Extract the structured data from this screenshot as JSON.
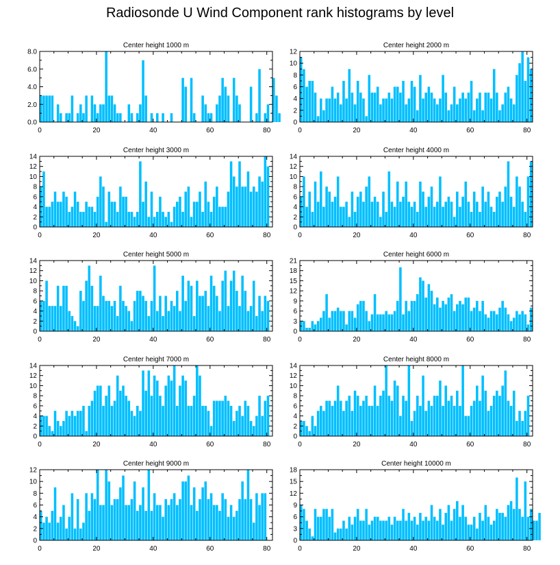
{
  "title": "Radiosonde U Wind Component rank histograms by level",
  "colors": {
    "bar": "#00bfff",
    "bar_edge": "#ffffff",
    "axis": "#000000",
    "background": "#ffffff"
  },
  "chart_data": [
    {
      "type": "bar",
      "title": "Center height 1000 m",
      "x_start": 0,
      "xlim": [
        0,
        82
      ],
      "xticks": [
        0,
        20,
        40,
        60,
        80
      ],
      "ylim": [
        0,
        8
      ],
      "yticks": [
        0,
        2,
        4,
        6,
        8
      ],
      "ytick_labels": [
        "0.0",
        "2.0",
        "4.0",
        "6.0",
        "8.0"
      ],
      "values": [
        3,
        3,
        3,
        3,
        3,
        0,
        2,
        1,
        0,
        1,
        1,
        3,
        0,
        1,
        2,
        1,
        3,
        0,
        3,
        2,
        1,
        2,
        2,
        8,
        3,
        3,
        2,
        1,
        1,
        0,
        0,
        2,
        1,
        0,
        1,
        2,
        7,
        3,
        0,
        1,
        0,
        1,
        0,
        1,
        0,
        0,
        1,
        0,
        0,
        0,
        5,
        4,
        0,
        5,
        1,
        0,
        0,
        3,
        2,
        1,
        1,
        0,
        2,
        3,
        5,
        4,
        3,
        0,
        5,
        3,
        2,
        0,
        0,
        0,
        4,
        0,
        1,
        6,
        0,
        1,
        2,
        0,
        5,
        3,
        1
      ]
    },
    {
      "type": "bar",
      "title": "Center height 2000 m",
      "x_start": 0,
      "xlim": [
        0,
        82
      ],
      "xticks": [
        0,
        20,
        40,
        60,
        80
      ],
      "ylim": [
        0,
        12
      ],
      "yticks": [
        0,
        2,
        4,
        6,
        8,
        10,
        12
      ],
      "values": [
        11,
        9,
        6,
        7,
        7,
        5,
        1,
        4,
        2,
        4,
        4,
        6,
        4,
        5,
        3,
        7,
        4,
        9,
        5,
        3,
        7,
        5,
        4,
        1,
        8,
        5,
        5,
        6,
        3,
        4,
        4,
        5,
        4,
        6,
        6,
        5,
        7,
        3,
        4,
        7,
        6,
        2,
        8,
        4,
        5,
        6,
        5,
        4,
        3,
        4,
        8,
        5,
        2,
        3,
        6,
        3,
        4,
        5,
        4,
        5,
        7,
        2,
        4,
        5,
        2,
        5,
        5,
        4,
        9,
        5,
        2,
        3,
        5,
        6,
        4,
        3,
        8,
        10,
        12,
        7,
        11,
        9
      ]
    },
    {
      "type": "bar",
      "title": "Center height 3000 m",
      "x_start": 0,
      "xlim": [
        0,
        82
      ],
      "xticks": [
        0,
        20,
        40,
        60,
        80
      ],
      "ylim": [
        0,
        14
      ],
      "yticks": [
        0,
        2,
        4,
        6,
        8,
        10,
        12,
        14
      ],
      "values": [
        8,
        11,
        4,
        4,
        5,
        7,
        5,
        5,
        7,
        6,
        3,
        4,
        7,
        5,
        3,
        3,
        5,
        4,
        4,
        3,
        6,
        10,
        8,
        1,
        7,
        5,
        5,
        3,
        8,
        6,
        6,
        3,
        3,
        2,
        3,
        13,
        5,
        9,
        2,
        7,
        2,
        3,
        6,
        3,
        2,
        3,
        1,
        4,
        5,
        6,
        3,
        7,
        8,
        2,
        5,
        5,
        7,
        3,
        9,
        5,
        3,
        6,
        8,
        4,
        4,
        4,
        7,
        13,
        10,
        8,
        13,
        8,
        8,
        11,
        7,
        8,
        7,
        10,
        9,
        14,
        12
      ]
    },
    {
      "type": "bar",
      "title": "Center height 4000 m",
      "x_start": 0,
      "xlim": [
        0,
        82
      ],
      "xticks": [
        0,
        20,
        40,
        60,
        80
      ],
      "ylim": [
        0,
        14
      ],
      "yticks": [
        0,
        2,
        4,
        6,
        8,
        10,
        12,
        14
      ],
      "values": [
        6,
        10,
        4,
        7,
        3,
        9,
        5,
        11,
        4,
        8,
        7,
        5,
        6,
        10,
        4,
        4,
        5,
        2,
        7,
        3,
        6,
        7,
        5,
        8,
        10,
        5,
        6,
        5,
        2,
        7,
        3,
        11,
        5,
        4,
        9,
        5,
        6,
        9,
        5,
        4,
        5,
        3,
        9,
        7,
        4,
        6,
        8,
        4,
        5,
        10,
        4,
        5,
        6,
        5,
        2,
        7,
        4,
        6,
        9,
        5,
        3,
        7,
        5,
        3,
        8,
        5,
        7,
        4,
        3,
        6,
        7,
        5,
        8,
        13,
        6,
        4,
        10,
        8,
        5,
        3,
        10,
        13
      ]
    },
    {
      "type": "bar",
      "title": "Center height 5000 m",
      "x_start": 0,
      "xlim": [
        0,
        82
      ],
      "xticks": [
        0,
        20,
        40,
        60,
        80
      ],
      "ylim": [
        0,
        14
      ],
      "yticks": [
        0,
        2,
        4,
        6,
        8,
        10,
        12,
        14
      ],
      "values": [
        6,
        6,
        10,
        5,
        5,
        5,
        9,
        5,
        9,
        9,
        4,
        3,
        2,
        1,
        8,
        6,
        10,
        13,
        9,
        5,
        5,
        11,
        7,
        6,
        6,
        5,
        6,
        3,
        9,
        6,
        5,
        4,
        2,
        6,
        8,
        8,
        7,
        6,
        3,
        6,
        13,
        4,
        7,
        3,
        7,
        4,
        6,
        5,
        8,
        4,
        11,
        6,
        10,
        9,
        3,
        10,
        7,
        7,
        8,
        5,
        11,
        9,
        7,
        4,
        10,
        12,
        5,
        10,
        12,
        8,
        5,
        11,
        8,
        4,
        5,
        10,
        3,
        7,
        4,
        7,
        6
      ]
    },
    {
      "type": "bar",
      "title": "Center height 6000 m",
      "x_start": 0,
      "xlim": [
        0,
        82
      ],
      "xticks": [
        0,
        20,
        40,
        60,
        80
      ],
      "ylim": [
        0,
        21
      ],
      "yticks": [
        0,
        3,
        6,
        9,
        12,
        15,
        18,
        21
      ],
      "values": [
        3,
        3,
        1,
        1,
        3,
        2,
        3,
        4,
        6,
        11,
        4,
        6,
        6,
        7,
        6,
        6,
        2,
        6,
        6,
        4,
        8,
        9,
        9,
        6,
        3,
        5,
        11,
        5,
        5,
        5,
        6,
        5,
        5,
        6,
        9,
        19,
        5,
        9,
        6,
        9,
        9,
        11,
        16,
        15,
        10,
        14,
        12,
        8,
        10,
        7,
        9,
        8,
        10,
        11,
        6,
        8,
        9,
        8,
        10,
        10,
        6,
        7,
        9,
        6,
        9,
        5,
        4,
        6,
        6,
        5,
        7,
        9,
        7,
        5,
        3,
        4,
        6,
        5,
        6,
        5,
        2,
        7
      ]
    },
    {
      "type": "bar",
      "title": "Center height 7000 m",
      "x_start": 0,
      "xlim": [
        0,
        82
      ],
      "xticks": [
        0,
        20,
        40,
        60,
        80
      ],
      "ylim": [
        0,
        14
      ],
      "yticks": [
        0,
        2,
        4,
        6,
        8,
        10,
        12,
        14
      ],
      "values": [
        4,
        4,
        4,
        2,
        1,
        5,
        3,
        2,
        3,
        5,
        4,
        5,
        4,
        5,
        5,
        6,
        1,
        6,
        7,
        9,
        10,
        10,
        6,
        8,
        10,
        6,
        7,
        12,
        9,
        10,
        8,
        7,
        5,
        4,
        6,
        5,
        13,
        9,
        13,
        8,
        12,
        11,
        8,
        6,
        10,
        12,
        11,
        14,
        6,
        10,
        12,
        11,
        6,
        6,
        8,
        14,
        12,
        6,
        6,
        5,
        2,
        7,
        7,
        7,
        7,
        8,
        7,
        6,
        3,
        5,
        6,
        4,
        7,
        6,
        3,
        2,
        4,
        8,
        4,
        7,
        8
      ]
    },
    {
      "type": "bar",
      "title": "Center height 8000 m",
      "x_start": 0,
      "xlim": [
        0,
        82
      ],
      "xticks": [
        0,
        20,
        40,
        60,
        80
      ],
      "ylim": [
        0,
        14
      ],
      "yticks": [
        0,
        2,
        4,
        6,
        8,
        10,
        12,
        14
      ],
      "values": [
        3,
        3,
        2,
        1,
        4,
        2,
        5,
        6,
        5,
        7,
        7,
        6,
        7,
        10,
        7,
        5,
        7,
        8,
        5,
        9,
        8,
        6,
        7,
        8,
        6,
        6,
        10,
        6,
        8,
        9,
        14,
        8,
        7,
        11,
        10,
        4,
        8,
        7,
        14,
        3,
        5,
        8,
        6,
        12,
        5,
        7,
        6,
        8,
        8,
        11,
        6,
        10,
        7,
        8,
        6,
        9,
        6,
        14,
        4,
        4,
        6,
        7,
        10,
        7,
        12,
        9,
        5,
        6,
        8,
        9,
        8,
        10,
        13,
        7,
        6,
        9,
        3,
        5,
        3,
        5,
        8
      ]
    },
    {
      "type": "bar",
      "title": "Center height 9000 m",
      "x_start": 0,
      "xlim": [
        0,
        82
      ],
      "xticks": [
        0,
        20,
        40,
        60,
        80
      ],
      "ylim": [
        0,
        12
      ],
      "yticks": [
        0,
        2,
        4,
        6,
        8,
        10,
        12
      ],
      "values": [
        5,
        3,
        4,
        3,
        5,
        9,
        3,
        4,
        6,
        2,
        4,
        8,
        2,
        7,
        2,
        3,
        8,
        5,
        8,
        7,
        12,
        6,
        6,
        12,
        10,
        6,
        7,
        7,
        9,
        11,
        6,
        6,
        7,
        10,
        5,
        6,
        9,
        5,
        12,
        5,
        8,
        6,
        6,
        4,
        7,
        6,
        7,
        8,
        6,
        7,
        10,
        10,
        11,
        6,
        9,
        5,
        7,
        9,
        10,
        7,
        8,
        6,
        6,
        5,
        8,
        7,
        4,
        6,
        4,
        5,
        7,
        10,
        7,
        12,
        7,
        3,
        8,
        6,
        8,
        8
      ]
    },
    {
      "type": "bar",
      "title": "Center height 10000 m",
      "x_start": 0,
      "xlim": [
        0,
        82
      ],
      "xticks": [
        0,
        20,
        40,
        60,
        80
      ],
      "ylim": [
        0,
        18
      ],
      "yticks": [
        0,
        3,
        6,
        9,
        12,
        15,
        18
      ],
      "values": [
        9,
        8,
        5,
        3,
        1,
        8,
        6,
        6,
        8,
        8,
        6,
        8,
        2,
        3,
        3,
        5,
        3,
        6,
        4,
        6,
        8,
        5,
        5,
        8,
        4,
        5,
        6,
        6,
        5,
        5,
        5,
        6,
        4,
        6,
        5,
        5,
        8,
        5,
        7,
        5,
        6,
        4,
        7,
        5,
        6,
        5,
        9,
        6,
        5,
        8,
        4,
        7,
        9,
        5,
        8,
        10,
        6,
        9,
        6,
        4,
        4,
        6,
        3,
        7,
        5,
        9,
        6,
        4,
        5,
        8,
        7,
        7,
        6,
        9,
        10,
        8,
        16,
        8,
        6,
        15,
        6,
        8,
        5,
        5,
        7
      ]
    }
  ]
}
